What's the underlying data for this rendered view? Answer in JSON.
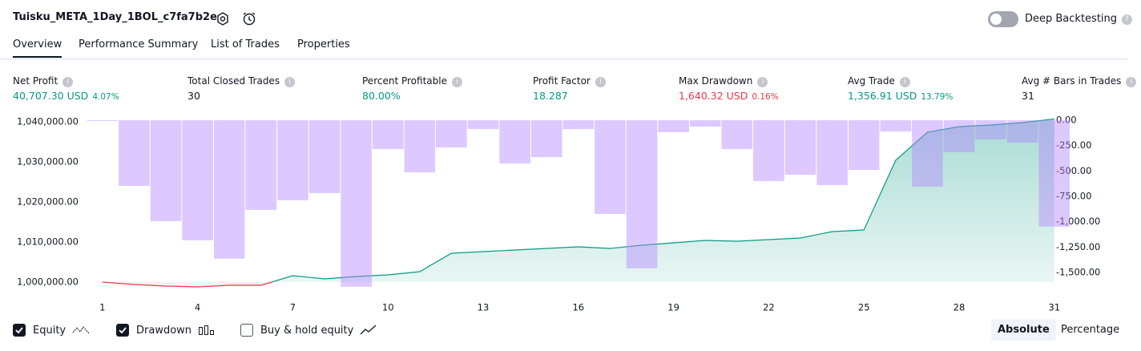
{
  "header": {
    "title": "Tuisku_META_1Day_1BOL_c7fa7b2e",
    "toggle_label": "Deep Backtesting"
  },
  "tabs": [
    "Overview",
    "Performance Summary",
    "List of Trades",
    "Properties"
  ],
  "metrics": [
    {
      "label": "Net Profit",
      "value": "40,707.30 USD",
      "extra": "4.07%",
      "tone": "green"
    },
    {
      "label": "Total Closed Trades",
      "value": "30",
      "tone": "black"
    },
    {
      "label": "Percent Profitable",
      "value": "80.00%",
      "tone": "green"
    },
    {
      "label": "Profit Factor",
      "value": "18.287",
      "tone": "green"
    },
    {
      "label": "Max Drawdown",
      "value": "1,640.32 USD",
      "extra": "0.16%",
      "tone": "red"
    },
    {
      "label": "Avg Trade",
      "value": "1,356.91 USD",
      "extra": "13.79%",
      "tone": "green"
    },
    {
      "label": "Avg # Bars in Trades",
      "value": "31",
      "tone": "black"
    }
  ],
  "chart_data": {
    "type": "line",
    "x": [
      1,
      2,
      3,
      4,
      5,
      6,
      7,
      8,
      9,
      10,
      11,
      12,
      13,
      14,
      15,
      16,
      17,
      18,
      19,
      20,
      21,
      22,
      23,
      24,
      25,
      26,
      27,
      28,
      29,
      30,
      31
    ],
    "xlim": [
      0.5,
      31.5
    ],
    "xticks": [
      1,
      4,
      7,
      10,
      13,
      16,
      19,
      22,
      25,
      28,
      31
    ],
    "ylim": [
      997000,
      1041000
    ],
    "yticks": [
      {
        "value": 1040000,
        "label": "1,040,000.00"
      },
      {
        "value": 1030000,
        "label": "1,030,000.00"
      },
      {
        "value": 1020000,
        "label": "1,020,000.00"
      },
      {
        "value": 1010000,
        "label": "1,010,000.00"
      },
      {
        "value": 1000000,
        "label": "1,000,000.00"
      }
    ],
    "y2lim": [
      -1713,
      24
    ],
    "y2ticks": [
      {
        "value": 0,
        "label": "0.00"
      },
      {
        "value": -250,
        "label": "-250.00"
      },
      {
        "value": -500,
        "label": "-500.00"
      },
      {
        "value": -750,
        "label": "-750.00"
      },
      {
        "value": -1000,
        "label": "-1,000.00"
      },
      {
        "value": -1250,
        "label": "-1,250.00"
      },
      {
        "value": -1500,
        "label": "-1,500.00"
      }
    ],
    "series": [
      {
        "name": "Equity",
        "color": "#089981",
        "negative_color": "#f23645",
        "checked": true,
        "values": [
          1000000,
          999400,
          999000,
          998800,
          999200,
          999200,
          1001600,
          1000800,
          1001400,
          1001800,
          1002600,
          1007200,
          1007600,
          1008000,
          1008400,
          1008800,
          1008400,
          1009200,
          1009800,
          1010400,
          1010200,
          1010600,
          1011000,
          1012600,
          1013000,
          1030400,
          1037400,
          1038800,
          1039200,
          1039800,
          1040707.3
        ]
      },
      {
        "name": "Drawdown",
        "type": "bar",
        "axis": "y2",
        "color": "#b388ff",
        "checked": true,
        "values": [
          0,
          -647,
          -994,
          -1183,
          -1364,
          -883,
          -789,
          -718,
          -1640.32,
          -284,
          -513,
          -268,
          -87,
          -426,
          -363,
          -87,
          -923,
          -1459,
          -118,
          -63,
          -284,
          -599,
          -536,
          -639,
          -489,
          -110,
          -655,
          -315,
          -189,
          -221,
          -1049
        ]
      }
    ]
  },
  "controls": {
    "buy_hold": "Buy & hold equity",
    "buy_hold_checked": false,
    "absolute": "Absolute",
    "percentage": "Percentage"
  }
}
